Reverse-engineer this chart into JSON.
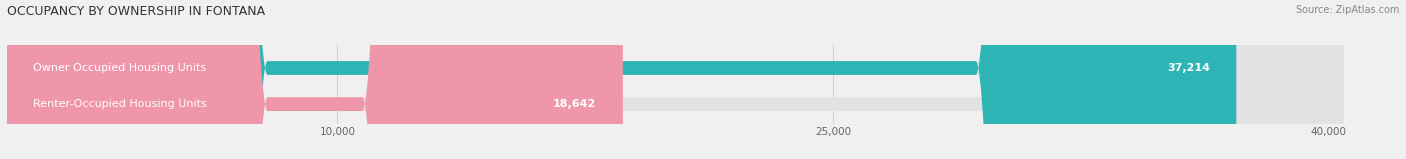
{
  "title": "OCCUPANCY BY OWNERSHIP IN FONTANA",
  "source": "Source: ZipAtlas.com",
  "categories": [
    "Owner Occupied Housing Units",
    "Renter-Occupied Housing Units"
  ],
  "values": [
    37214,
    18642
  ],
  "bar_colors": [
    "#2db5b5",
    "#f096aa"
  ],
  "xlim_max": 41500,
  "xticks": [
    10000,
    25000,
    40000
  ],
  "xtick_labels": [
    "10,000",
    "25,000",
    "40,000"
  ],
  "background_color": "#f0f0f0",
  "bar_background_color": "#e2e2e2",
  "title_fontsize": 9,
  "source_fontsize": 7,
  "label_fontsize": 8,
  "value_fontsize": 8,
  "bar_height": 0.38
}
